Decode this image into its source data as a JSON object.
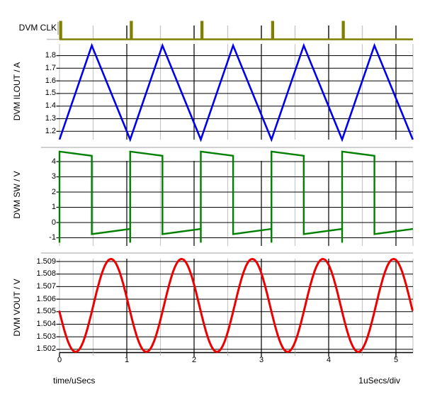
{
  "footer": {
    "xlabel": "time/uSecs",
    "per_div": "1uSecs/div"
  },
  "chart_data": {
    "type": "line",
    "title": "",
    "background": "#FFFFFF",
    "time_axis": {
      "label": "time/uSecs",
      "per_div": "1uSecs/div",
      "range_us": [
        0,
        5.25
      ],
      "major_ticks": [
        0,
        1,
        2,
        3,
        4,
        5
      ],
      "minor_ticks": [
        0.5,
        1.5,
        2.5,
        3.5,
        4.5
      ],
      "grid_major_color": "#000000",
      "grid_minor_color": "#C8C8C8",
      "axis_color": "#000000"
    },
    "plots": [
      {
        "name": "DVM CLK",
        "kind": "pulse",
        "color": "#7F7F00",
        "pulse_times_us": [
          0,
          1.05,
          2.1,
          3.15,
          4.2
        ],
        "pulse_width_us": 0.045,
        "period_us": 1.05
      },
      {
        "name": "DVM ILOUT / A",
        "kind": "triangle",
        "color": "#0000EE",
        "y_ticks": [
          {
            "label": "1.8",
            "value": 1.8
          },
          {
            "label": "1.7",
            "value": 1.7
          },
          {
            "label": "1.6",
            "value": 1.6
          },
          {
            "label": "1.5",
            "value": 1.5
          },
          {
            "label": "1.4",
            "value": 1.4
          },
          {
            "label": "1.3",
            "value": 1.3
          },
          {
            "label": "1.2",
            "value": 1.2
          }
        ],
        "valley_a": 1.135,
        "peak_a": 1.88,
        "period_us": 1.05,
        "peak_offset_us": 0.48,
        "valley_times_us": [
          0,
          1.05,
          2.1,
          3.15,
          4.2,
          5.25
        ]
      },
      {
        "name": "DVM SW / V",
        "kind": "square",
        "color": "#008000",
        "y_ticks": [
          {
            "label": "4",
            "value": 4
          },
          {
            "label": "3",
            "value": 3
          },
          {
            "label": "2",
            "value": 2
          },
          {
            "label": "1",
            "value": 1
          },
          {
            "label": "0",
            "value": 0
          },
          {
            "label": "-1",
            "value": -1
          }
        ],
        "high_start_v": 4.66,
        "high_end_v": 4.38,
        "low_start_v": -0.76,
        "low_end_v": -0.42,
        "spike_min_v": -1.32,
        "on_time_us": 0.48,
        "period_us": 1.05
      },
      {
        "name": "DVM VOUT / V",
        "kind": "sine",
        "color": "#EE0000",
        "y_ticks": [
          {
            "label": "1.509",
            "value": 1.509
          },
          {
            "label": "1.508",
            "value": 1.508
          },
          {
            "label": "1.507",
            "value": 1.507
          },
          {
            "label": "1.506",
            "value": 1.506
          },
          {
            "label": "1.505",
            "value": 1.505
          },
          {
            "label": "1.504",
            "value": 1.504
          },
          {
            "label": "1.503",
            "value": 1.503
          },
          {
            "label": "1.502",
            "value": 1.502
          }
        ],
        "mean_v": 1.5055,
        "amplitude_v": 0.0037,
        "period_us": 1.05,
        "min_time_us": 0.24
      }
    ]
  }
}
